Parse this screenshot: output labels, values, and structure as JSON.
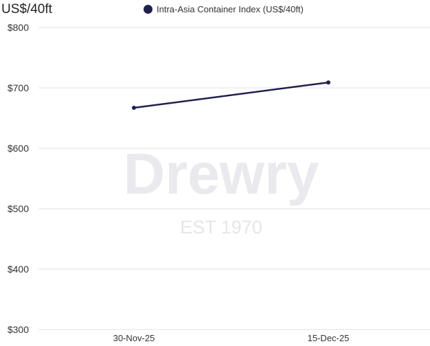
{
  "chart_data": {
    "type": "line",
    "title": "",
    "ylabel": "US$/40ft",
    "xlabel": "",
    "categories": [
      "30-Nov-25",
      "15-Dec-25"
    ],
    "series": [
      {
        "name": "Intra-Asia Container Index (US$/40ft)",
        "values": [
          667,
          709
        ],
        "color": "#1f1f4f"
      }
    ],
    "ylim": [
      300,
      800
    ],
    "yticks": [
      300,
      400,
      500,
      600,
      700,
      800
    ],
    "ytick_labels": [
      "$300",
      "$400",
      "$500",
      "$600",
      "$700",
      "$800"
    ],
    "grid": "horizontal",
    "legend_placement": "top-center"
  },
  "watermark": {
    "brand": "Drewry",
    "tagline": "EST 1970"
  }
}
